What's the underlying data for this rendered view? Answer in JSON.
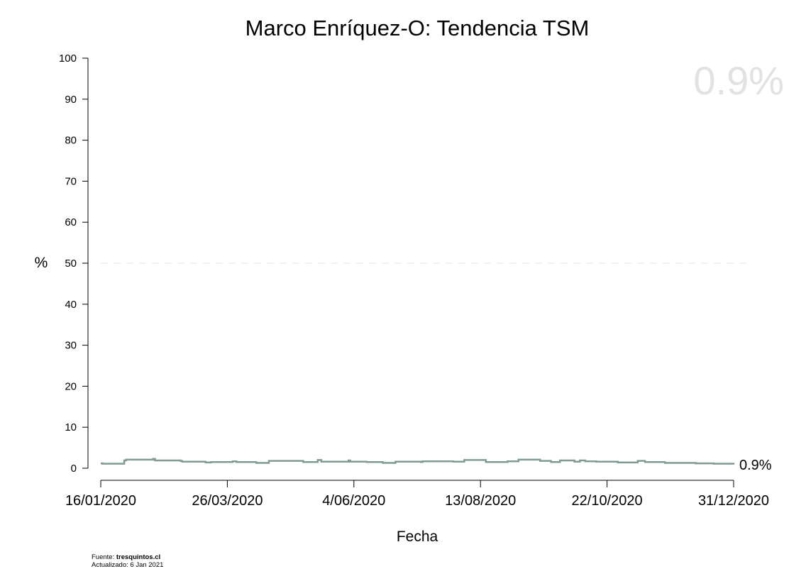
{
  "footer": {
    "source_prefix": "Fuente: ",
    "source_name": "tresquintos.cl",
    "updated": "Actualizado: 6 Jan 2021"
  },
  "chart_data": {
    "type": "line",
    "title": "Marco Enríquez-O: Tendencia TSM",
    "xlabel": "Fecha",
    "ylabel": "%",
    "ylim": [
      0,
      100
    ],
    "yticks": [
      0,
      10,
      20,
      30,
      40,
      50,
      60,
      70,
      80,
      90,
      100
    ],
    "xlim": [
      "2020-01-16",
      "2020-12-31"
    ],
    "xticks": [
      "2020-01-16",
      "2020-03-26",
      "2020-06-04",
      "2020-08-13",
      "2020-10-22",
      "2020-12-31"
    ],
    "xtick_labels": [
      "16/01/2020",
      "26/03/2020",
      "4/06/2020",
      "13/08/2020",
      "22/10/2020",
      "31/12/2020"
    ],
    "reference_line": {
      "y": 50,
      "style": "dashed"
    },
    "highlight_value": "0.9%",
    "end_label": "0.9%",
    "grid": false,
    "line_color": "#7f9c8e",
    "series": [
      {
        "step": true,
        "points": [
          [
            "2020-01-16",
            1.2
          ],
          [
            "2020-01-17",
            1.1
          ],
          [
            "2020-01-29",
            1.9
          ],
          [
            "2020-01-30",
            2.1
          ],
          [
            "2020-02-14",
            2.3
          ],
          [
            "2020-02-15",
            1.9
          ],
          [
            "2020-02-29",
            1.8
          ],
          [
            "2020-03-01",
            1.6
          ],
          [
            "2020-03-14",
            1.4
          ],
          [
            "2020-03-17",
            1.5
          ],
          [
            "2020-03-29",
            1.7
          ],
          [
            "2020-03-31",
            1.5
          ],
          [
            "2020-04-11",
            1.3
          ],
          [
            "2020-04-18",
            1.8
          ],
          [
            "2020-05-07",
            1.5
          ],
          [
            "2020-05-15",
            2.0
          ],
          [
            "2020-05-17",
            1.6
          ],
          [
            "2020-06-01",
            1.9
          ],
          [
            "2020-06-02",
            1.6
          ],
          [
            "2020-06-11",
            1.5
          ],
          [
            "2020-06-20",
            1.3
          ],
          [
            "2020-06-27",
            1.6
          ],
          [
            "2020-07-11",
            1.5
          ],
          [
            "2020-07-12",
            1.7
          ],
          [
            "2020-07-29",
            1.6
          ],
          [
            "2020-08-04",
            2.0
          ],
          [
            "2020-08-16",
            1.5
          ],
          [
            "2020-08-28",
            1.7
          ],
          [
            "2020-09-03",
            2.1
          ],
          [
            "2020-09-15",
            1.8
          ],
          [
            "2020-09-21",
            1.5
          ],
          [
            "2020-09-26",
            1.9
          ],
          [
            "2020-10-04",
            1.6
          ],
          [
            "2020-10-07",
            1.9
          ],
          [
            "2020-10-10",
            1.7
          ],
          [
            "2020-10-16",
            1.6
          ],
          [
            "2020-10-28",
            1.4
          ],
          [
            "2020-11-08",
            1.8
          ],
          [
            "2020-11-12",
            1.5
          ],
          [
            "2020-11-23",
            1.3
          ],
          [
            "2020-12-10",
            1.2
          ],
          [
            "2020-12-20",
            1.1
          ],
          [
            "2020-12-31",
            0.9
          ]
        ]
      }
    ]
  }
}
